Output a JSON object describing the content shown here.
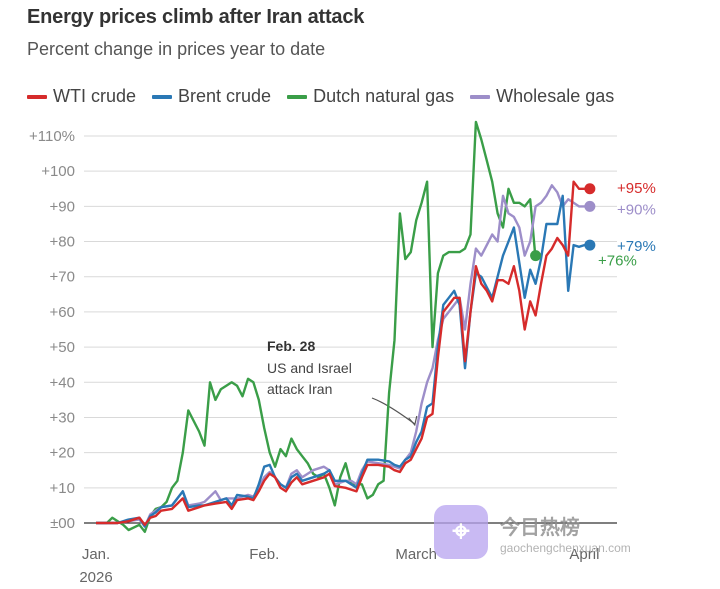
{
  "chart_data": {
    "type": "line",
    "title": "Energy prices climb after Iran attack",
    "subtitle": "Percent change in prices year to date",
    "x_ticks": [
      {
        "label": "Jan.",
        "sublabel": "2026",
        "day": 0
      },
      {
        "label": "Feb.",
        "sublabel": "",
        "day": 31
      },
      {
        "label": "March",
        "sublabel": "",
        "day": 59
      },
      {
        "label": "April",
        "sublabel": "",
        "day": 90
      }
    ],
    "x_range": [
      0,
      96
    ],
    "ylim": [
      0,
      110
    ],
    "y_ticks": [
      {
        "value": 0,
        "label": "±00"
      },
      {
        "value": 10,
        "label": "+10"
      },
      {
        "value": 20,
        "label": "+20"
      },
      {
        "value": 30,
        "label": "+30"
      },
      {
        "value": 40,
        "label": "+40"
      },
      {
        "value": 50,
        "label": "+50"
      },
      {
        "value": 60,
        "label": "+60"
      },
      {
        "value": 70,
        "label": "+70"
      },
      {
        "value": 80,
        "label": "+80"
      },
      {
        "value": 90,
        "label": "+90"
      },
      {
        "value": 100,
        "label": "+100"
      },
      {
        "value": 110,
        "label": "+110%"
      }
    ],
    "grid": true,
    "legend": "top-left",
    "annotation": {
      "title": "Feb. 28",
      "lines": [
        "US and Israel",
        "attack Iran"
      ],
      "day": 58
    },
    "series": [
      {
        "name": "WTI crude",
        "color": "#d62b2b",
        "end_label": "+95%",
        "end_value": 95,
        "points": [
          [
            0,
            0
          ],
          [
            2,
            0
          ],
          [
            4,
            0
          ],
          [
            6,
            0.5
          ],
          [
            8,
            1.5
          ],
          [
            9,
            -0.5
          ],
          [
            10,
            1.5
          ],
          [
            11,
            2
          ],
          [
            12,
            3.5
          ],
          [
            14,
            4
          ],
          [
            16,
            7
          ],
          [
            17,
            3.5
          ],
          [
            19,
            4.5
          ],
          [
            20,
            5
          ],
          [
            22,
            5.5
          ],
          [
            24,
            6
          ],
          [
            25,
            4
          ],
          [
            26,
            6.5
          ],
          [
            28,
            7
          ],
          [
            29,
            6.5
          ],
          [
            30,
            9
          ],
          [
            31,
            12
          ],
          [
            32,
            14
          ],
          [
            33,
            13
          ],
          [
            34,
            10
          ],
          [
            35,
            9
          ],
          [
            36,
            11.5
          ],
          [
            37,
            13
          ],
          [
            38,
            11
          ],
          [
            40,
            12
          ],
          [
            42,
            13
          ],
          [
            43,
            14
          ],
          [
            44,
            10.5
          ],
          [
            46,
            10
          ],
          [
            47,
            9.5
          ],
          [
            48,
            9
          ],
          [
            49,
            13
          ],
          [
            50,
            16.5
          ],
          [
            52,
            16.5
          ],
          [
            54,
            16
          ],
          [
            55,
            15
          ],
          [
            56,
            14.5
          ],
          [
            57,
            17
          ],
          [
            58,
            18
          ],
          [
            59,
            21
          ],
          [
            60,
            24
          ],
          [
            61,
            30
          ],
          [
            62,
            31
          ],
          [
            63,
            47
          ],
          [
            64,
            60
          ],
          [
            65,
            62
          ],
          [
            66,
            64
          ],
          [
            67,
            64
          ],
          [
            68,
            46
          ],
          [
            69,
            60
          ],
          [
            70,
            73
          ],
          [
            71,
            68
          ],
          [
            72,
            66
          ],
          [
            73,
            63
          ],
          [
            74,
            69
          ],
          [
            75,
            69
          ],
          [
            76,
            68
          ],
          [
            77,
            73
          ],
          [
            78,
            66
          ],
          [
            79,
            55
          ],
          [
            80,
            63
          ],
          [
            81,
            59
          ],
          [
            82,
            68
          ],
          [
            83,
            76
          ],
          [
            84,
            78
          ],
          [
            85,
            81
          ],
          [
            86,
            79
          ],
          [
            87,
            76
          ],
          [
            88,
            97
          ],
          [
            89,
            95
          ],
          [
            90,
            95
          ],
          [
            91,
            95
          ]
        ]
      },
      {
        "name": "Brent crude",
        "color": "#2a78b5",
        "end_label": "+79%",
        "end_value": 79,
        "points": [
          [
            0,
            0
          ],
          [
            2,
            0
          ],
          [
            4,
            0
          ],
          [
            6,
            1
          ],
          [
            8,
            1.5
          ],
          [
            9,
            -1
          ],
          [
            10,
            2
          ],
          [
            11,
            3
          ],
          [
            12,
            4.5
          ],
          [
            14,
            5
          ],
          [
            16,
            9
          ],
          [
            17,
            4.5
          ],
          [
            19,
            5
          ],
          [
            20,
            5
          ],
          [
            22,
            6
          ],
          [
            24,
            7
          ],
          [
            25,
            5
          ],
          [
            26,
            8
          ],
          [
            28,
            7.5
          ],
          [
            29,
            7
          ],
          [
            30,
            11
          ],
          [
            31,
            16
          ],
          [
            32,
            16.5
          ],
          [
            33,
            13
          ],
          [
            34,
            11
          ],
          [
            35,
            10
          ],
          [
            36,
            13
          ],
          [
            37,
            14
          ],
          [
            38,
            12
          ],
          [
            40,
            13
          ],
          [
            42,
            14
          ],
          [
            43,
            15
          ],
          [
            44,
            12
          ],
          [
            46,
            12
          ],
          [
            47,
            11
          ],
          [
            48,
            10
          ],
          [
            49,
            14
          ],
          [
            50,
            18
          ],
          [
            52,
            18
          ],
          [
            54,
            17.5
          ],
          [
            55,
            16.5
          ],
          [
            56,
            16
          ],
          [
            57,
            18
          ],
          [
            58,
            19
          ],
          [
            59,
            23
          ],
          [
            60,
            26
          ],
          [
            61,
            33
          ],
          [
            62,
            34
          ],
          [
            63,
            50
          ],
          [
            64,
            62
          ],
          [
            65,
            64
          ],
          [
            66,
            66
          ],
          [
            67,
            62
          ],
          [
            68,
            44
          ],
          [
            69,
            60
          ],
          [
            70,
            71
          ],
          [
            71,
            70
          ],
          [
            72,
            67
          ],
          [
            73,
            64
          ],
          [
            74,
            70
          ],
          [
            75,
            76
          ],
          [
            76,
            80
          ],
          [
            77,
            84
          ],
          [
            78,
            74
          ],
          [
            79,
            64
          ],
          [
            80,
            72
          ],
          [
            81,
            68
          ],
          [
            82,
            75
          ],
          [
            83,
            85
          ],
          [
            84,
            85
          ],
          [
            85,
            85
          ],
          [
            86,
            93
          ],
          [
            87,
            66
          ],
          [
            88,
            79
          ],
          [
            89,
            78.5
          ],
          [
            90,
            79
          ],
          [
            91,
            79
          ]
        ]
      },
      {
        "name": "Dutch natural gas",
        "color": "#3a9e48",
        "end_label": "+76%",
        "end_value": 76,
        "points": [
          [
            0,
            0
          ],
          [
            2,
            0
          ],
          [
            3,
            1.5
          ],
          [
            5,
            -0.5
          ],
          [
            6,
            -2
          ],
          [
            8,
            -0.5
          ],
          [
            9,
            -2.5
          ],
          [
            10,
            2
          ],
          [
            11,
            4
          ],
          [
            12,
            4.5
          ],
          [
            13,
            6
          ],
          [
            14,
            10
          ],
          [
            15,
            12
          ],
          [
            16,
            20
          ],
          [
            17,
            32
          ],
          [
            18,
            29
          ],
          [
            19,
            26
          ],
          [
            20,
            22
          ],
          [
            21,
            40
          ],
          [
            22,
            35
          ],
          [
            23,
            38
          ],
          [
            24,
            39
          ],
          [
            25,
            40
          ],
          [
            26,
            39
          ],
          [
            27,
            36
          ],
          [
            28,
            41
          ],
          [
            29,
            40
          ],
          [
            30,
            35
          ],
          [
            31,
            27
          ],
          [
            32,
            20
          ],
          [
            33,
            16
          ],
          [
            34,
            21
          ],
          [
            35,
            19
          ],
          [
            36,
            24
          ],
          [
            37,
            21
          ],
          [
            38,
            19
          ],
          [
            39,
            17
          ],
          [
            40,
            14
          ],
          [
            41,
            13
          ],
          [
            42,
            14
          ],
          [
            43,
            10
          ],
          [
            44,
            5
          ],
          [
            45,
            13
          ],
          [
            46,
            17
          ],
          [
            47,
            11
          ],
          [
            48,
            11
          ],
          [
            49,
            11
          ],
          [
            50,
            7
          ],
          [
            51,
            8
          ],
          [
            52,
            11
          ],
          [
            53,
            12
          ],
          [
            54,
            37
          ],
          [
            55,
            52
          ],
          [
            56,
            88
          ],
          [
            57,
            75
          ],
          [
            58,
            77
          ],
          [
            59,
            86
          ],
          [
            60,
            91
          ],
          [
            61,
            97
          ],
          [
            62,
            50
          ],
          [
            63,
            71
          ],
          [
            64,
            76
          ],
          [
            65,
            77
          ],
          [
            66,
            77
          ],
          [
            67,
            77
          ],
          [
            68,
            78
          ],
          [
            69,
            82
          ],
          [
            70,
            114
          ],
          [
            71,
            109
          ],
          [
            72,
            103
          ],
          [
            73,
            97
          ],
          [
            74,
            88
          ],
          [
            75,
            84
          ],
          [
            76,
            95
          ],
          [
            77,
            91
          ],
          [
            78,
            91
          ],
          [
            79,
            90
          ],
          [
            80,
            92
          ],
          [
            81,
            75
          ]
        ],
        "end_point": [
          81,
          76
        ]
      },
      {
        "name": "Wholesale gas",
        "color": "#9d8ec9",
        "end_label": "+90%",
        "end_value": 90,
        "points": [
          [
            0,
            0
          ],
          [
            2,
            0
          ],
          [
            4,
            0
          ],
          [
            6,
            0.5
          ],
          [
            8,
            1
          ],
          [
            9,
            -1
          ],
          [
            10,
            2.5
          ],
          [
            11,
            3.5
          ],
          [
            12,
            4.5
          ],
          [
            14,
            5
          ],
          [
            16,
            9
          ],
          [
            17,
            5
          ],
          [
            19,
            5.5
          ],
          [
            20,
            6
          ],
          [
            22,
            9
          ],
          [
            23,
            6.5
          ],
          [
            24,
            7
          ],
          [
            26,
            7
          ],
          [
            28,
            8
          ],
          [
            29,
            7.5
          ],
          [
            30,
            10
          ],
          [
            31,
            13
          ],
          [
            32,
            14.5
          ],
          [
            33,
            13
          ],
          [
            34,
            11
          ],
          [
            35,
            10
          ],
          [
            36,
            14
          ],
          [
            37,
            15
          ],
          [
            38,
            13
          ],
          [
            40,
            15
          ],
          [
            42,
            16
          ],
          [
            43,
            15
          ],
          [
            44,
            11
          ],
          [
            46,
            12
          ],
          [
            47,
            12
          ],
          [
            48,
            11
          ],
          [
            49,
            15
          ],
          [
            50,
            17.5
          ],
          [
            52,
            17
          ],
          [
            54,
            16.5
          ],
          [
            55,
            16
          ],
          [
            56,
            15.5
          ],
          [
            57,
            18
          ],
          [
            58,
            20
          ],
          [
            59,
            26
          ],
          [
            60,
            34
          ],
          [
            61,
            40
          ],
          [
            62,
            44
          ],
          [
            63,
            52
          ],
          [
            64,
            58
          ],
          [
            65,
            60
          ],
          [
            66,
            62
          ],
          [
            67,
            64
          ],
          [
            68,
            55
          ],
          [
            69,
            68
          ],
          [
            70,
            78
          ],
          [
            71,
            76
          ],
          [
            72,
            79
          ],
          [
            73,
            82
          ],
          [
            74,
            80
          ],
          [
            75,
            93
          ],
          [
            76,
            88
          ],
          [
            77,
            87
          ],
          [
            78,
            84
          ],
          [
            79,
            76
          ],
          [
            80,
            80
          ],
          [
            81,
            90
          ],
          [
            82,
            91
          ],
          [
            83,
            93
          ],
          [
            84,
            96
          ],
          [
            85,
            94
          ],
          [
            86,
            90
          ],
          [
            87,
            92
          ],
          [
            88,
            91
          ],
          [
            89,
            90
          ],
          [
            90,
            90
          ],
          [
            91,
            90
          ]
        ]
      }
    ]
  },
  "watermark": {
    "name": "今日热榜",
    "domain": "gaochengchenxuan.com"
  }
}
